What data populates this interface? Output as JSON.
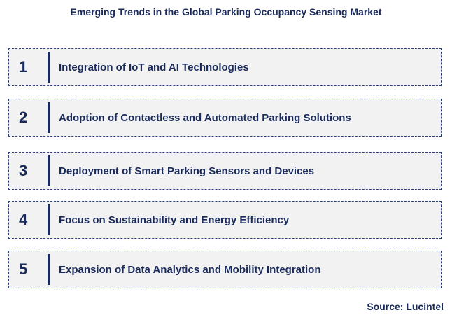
{
  "header": {
    "title": "Emerging Trends in the Global Parking Occupancy Sensing Market"
  },
  "items": [
    {
      "number": "1",
      "label": "Integration of IoT and AI Technologies"
    },
    {
      "number": "2",
      "label": "Adoption of Contactless and Automated Parking Solutions"
    },
    {
      "number": "3",
      "label": "Deployment of Smart Parking Sensors and Devices"
    },
    {
      "number": "4",
      "label": "Focus on Sustainability and Energy Efficiency"
    },
    {
      "number": "5",
      "label": "Expansion of Data Analytics and Mobility Integration"
    }
  ],
  "footer": {
    "source": "Source: Lucintel"
  }
}
